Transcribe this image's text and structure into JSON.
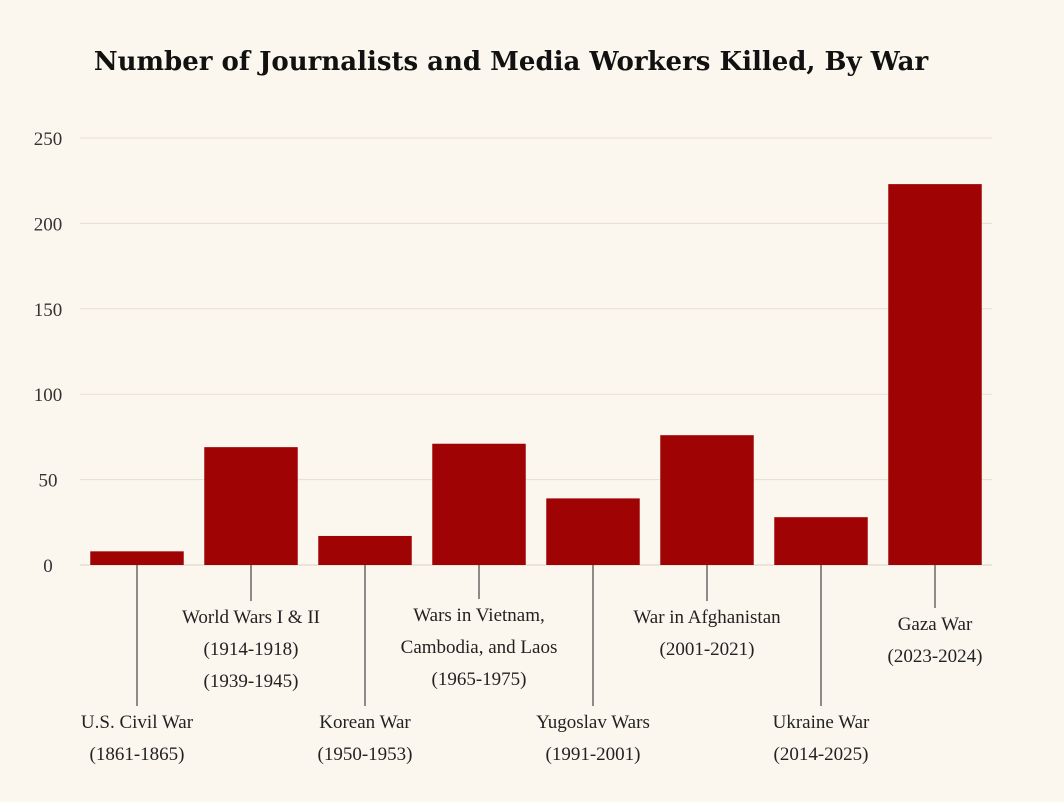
{
  "chart_data": {
    "type": "bar",
    "title": "Number of Journalists and Media Workers Killed, By War",
    "xlabel": "",
    "ylabel": "",
    "ylim": [
      0,
      250
    ],
    "yticks": [
      "0",
      "50",
      "100",
      "150",
      "200",
      "250"
    ],
    "grid": true,
    "bar_color": "#a00303",
    "categories": [
      [
        "U.S. Civil War",
        "(1861-1865)"
      ],
      [
        "World Wars I & II",
        "(1914-1918)",
        "(1939-1945)"
      ],
      [
        "Korean War",
        "(1950-1953)"
      ],
      [
        "Wars in Vietnam,",
        "Cambodia, and Laos",
        "(1965-1975)"
      ],
      [
        "Yugoslav Wars",
        "(1991-2001)"
      ],
      [
        "War in Afghanistan",
        "(2001-2021)"
      ],
      [
        "Ukraine War",
        "(2014-2025)"
      ],
      [
        "Gaza War",
        "(2023-2024)"
      ]
    ],
    "values": [
      8,
      69,
      17,
      71,
      39,
      76,
      28,
      223
    ]
  }
}
